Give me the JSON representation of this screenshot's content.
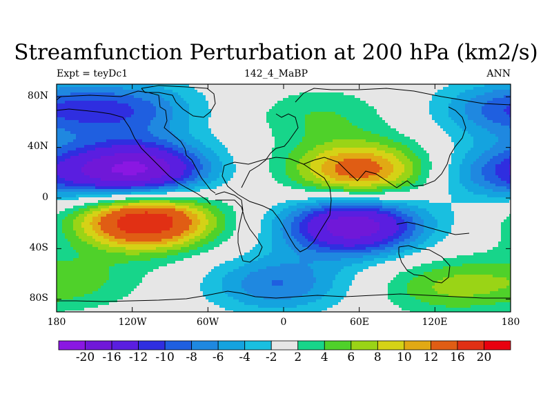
{
  "chart_data": {
    "type": "heatmap",
    "title": "Streamfunction Perturbation at 200 hPa (km2/s)",
    "subtitle_left": "Expt = teyDc1",
    "subtitle_center": "142_4_MaBP",
    "subtitle_right": "ANN",
    "x_ticks": [
      "180",
      "120W",
      "60W",
      "0",
      "60E",
      "120E",
      "180"
    ],
    "y_ticks": [
      "80N",
      "40N",
      "0",
      "40S",
      "80S"
    ],
    "xlim": [
      -180,
      180
    ],
    "ylim": [
      -90,
      90
    ],
    "colorbar_labels": [
      "-20",
      "-16",
      "-12",
      "-10",
      "-8",
      "-6",
      "-4",
      "-2",
      "2",
      "4",
      "6",
      "8",
      "10",
      "12",
      "16",
      "20"
    ],
    "colorbar_colors": [
      "#8a17e2",
      "#7018d8",
      "#5a1ee0",
      "#2f2ee0",
      "#1f5fe0",
      "#1f88e0",
      "#14a3df",
      "#19bfe0",
      "#e6e6e6",
      "#17d58a",
      "#4fd12a",
      "#9ad416",
      "#d5d216",
      "#e1a914",
      "#e05d14",
      "#e13014",
      "#e8000f"
    ],
    "field_features": [
      {
        "name": "negative",
        "lon": -115,
        "lat": 22,
        "peak": -20
      },
      {
        "name": "positive",
        "lon": -110,
        "lat": -18,
        "peak": 20
      },
      {
        "name": "positive",
        "lon": 60,
        "lat": 22,
        "peak": 14
      },
      {
        "name": "negative",
        "lon": 55,
        "lat": -22,
        "peak": -19
      },
      {
        "name": "negative",
        "lon": -120,
        "lat": 70,
        "peak": -8
      },
      {
        "name": "positive",
        "lon": 30,
        "lat": 65,
        "peak": 4
      },
      {
        "name": "negative",
        "lon": -5,
        "lat": -68,
        "peak": -8
      },
      {
        "name": "positive",
        "lon": 130,
        "lat": -70,
        "peak": 6
      },
      {
        "name": "positive",
        "lon": -160,
        "lat": -65,
        "peak": 4
      },
      {
        "name": "negative",
        "lon": 175,
        "lat": 20,
        "peak": -8
      },
      {
        "name": "negative",
        "lon": 175,
        "lat": 70,
        "peak": -8
      }
    ]
  }
}
